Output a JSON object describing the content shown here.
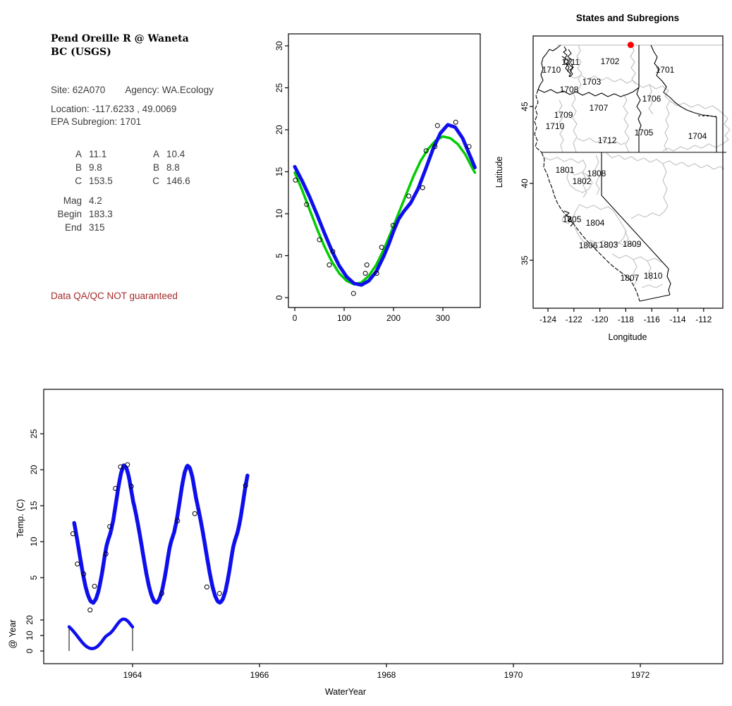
{
  "info_panel": {
    "title_line1": "Pend Oreille R @ Waneta",
    "title_line2": "BC (USGS)",
    "site_label": "Site: 62A070",
    "agency_label": "Agency: WA.Ecology",
    "location_label": "Location: -117.6233 , 49.0069",
    "subregion_label": "EPA Subregion: 1701",
    "params_left": [
      {
        "label": "A",
        "value": "11.1"
      },
      {
        "label": "B",
        "value": "9.8"
      },
      {
        "label": "C",
        "value": "153.5"
      },
      {
        "label": "Mag",
        "value": "4.2",
        "gap_before": true
      },
      {
        "label": "Begin",
        "value": "183.3"
      },
      {
        "label": "End",
        "value": "315"
      }
    ],
    "params_right": [
      {
        "label": "A",
        "value": "10.4"
      },
      {
        "label": "B",
        "value": "8.8"
      },
      {
        "label": "C",
        "value": "146.6"
      }
    ],
    "qa_warning": "Data QA/QC NOT guaranteed",
    "qa_color": "#A52A2A"
  },
  "colors": {
    "fit_blue": "#0F0FEE",
    "fit_green": "#00CD00",
    "site_dot_red": "#FF0000",
    "subregion_gray": "#C3C3C3"
  },
  "chart_data": [
    {
      "id": "seasonal_fit_plot",
      "type": "scatter",
      "xlabel": "",
      "ylabel": "",
      "xlim": [
        -13,
        376
      ],
      "ylim": [
        -1.2,
        31.4
      ],
      "x_ticks": [
        0,
        100,
        200,
        300
      ],
      "y_ticks": [
        0,
        5,
        10,
        15,
        20,
        25,
        30
      ],
      "scatter": {
        "x": [
          1.4,
          24,
          50,
          70,
          77,
          119,
          143,
          146,
          166,
          176,
          199,
          231,
          259,
          266,
          284,
          289,
          326,
          353
        ],
        "y": [
          14.0,
          11.1,
          6.9,
          3.9,
          5.5,
          0.5,
          2.9,
          3.9,
          2.9,
          6.0,
          8.6,
          12.1,
          13.1,
          17.5,
          18.0,
          20.5,
          20.9,
          18.0
        ]
      },
      "series": [
        {
          "name": "seasonal-smooth-fit",
          "color": "#0F0FEE",
          "width": 5,
          "x": [
            0,
            15,
            30,
            45,
            60,
            75,
            90,
            105,
            120,
            135,
            150,
            165,
            180,
            190,
            200,
            210,
            220,
            235,
            250,
            265,
            280,
            295,
            310,
            325,
            340,
            355,
            365
          ],
          "y": [
            15.6,
            13.9,
            12.0,
            9.9,
            7.7,
            5.6,
            3.8,
            2.5,
            1.7,
            1.5,
            2.0,
            3.1,
            4.9,
            6.3,
            7.9,
            9.3,
            10.2,
            11.3,
            13.0,
            15.3,
            17.7,
            19.6,
            20.6,
            20.3,
            19.0,
            16.9,
            15.5
          ]
        },
        {
          "name": "sine-fit",
          "color": "#00CD00",
          "width": 3.5,
          "x": [
            0,
            15,
            30,
            45,
            60,
            75,
            90,
            105,
            120,
            135,
            150,
            165,
            180,
            195,
            210,
            225,
            240,
            255,
            270,
            285,
            300,
            315,
            330,
            345,
            360,
            365
          ],
          "y": [
            14.9,
            12.8,
            10.5,
            8.2,
            6.1,
            4.3,
            2.9,
            2.0,
            1.6,
            1.8,
            2.6,
            3.9,
            5.7,
            7.8,
            10.0,
            12.2,
            14.4,
            16.3,
            17.7,
            18.7,
            19.2,
            19.0,
            18.3,
            17.1,
            15.4,
            14.9
          ]
        }
      ]
    },
    {
      "id": "subregion_map",
      "type": "map",
      "title": "States and Subregions",
      "xlabel": "Longitude",
      "ylabel": "Latitude",
      "x_ticks": [
        -124,
        -122,
        -120,
        -118,
        -116,
        -114,
        -112
      ],
      "y_ticks": [
        35,
        40,
        45
      ],
      "site_marker": {
        "lon": -117.6233,
        "lat": 49.0069,
        "color": "#FF0000"
      },
      "region_labels": [
        {
          "text": "1710",
          "lon": -123.73,
          "lat": 47.39
        },
        {
          "text": "1711",
          "lon": -122.25,
          "lat": 47.9
        },
        {
          "text": "1702",
          "lon": -119.22,
          "lat": 47.94
        },
        {
          "text": "1701",
          "lon": -114.98,
          "lat": 47.39
        },
        {
          "text": "1703",
          "lon": -120.63,
          "lat": 46.61
        },
        {
          "text": "1708",
          "lon": -122.37,
          "lat": 46.1
        },
        {
          "text": "1706",
          "lon": -116.01,
          "lat": 45.5
        },
        {
          "text": "1707",
          "lon": -120.09,
          "lat": 44.91
        },
        {
          "text": "1709",
          "lon": -122.8,
          "lat": 44.45
        },
        {
          "text": "1710",
          "lon": -123.46,
          "lat": 43.72
        },
        {
          "text": "1705",
          "lon": -116.61,
          "lat": 43.3
        },
        {
          "text": "1704",
          "lon": -112.48,
          "lat": 43.07
        },
        {
          "text": "1712",
          "lon": -119.43,
          "lat": 42.8
        },
        {
          "text": "1801",
          "lon": -122.7,
          "lat": 40.87
        },
        {
          "text": "1808",
          "lon": -120.25,
          "lat": 40.64
        },
        {
          "text": "1802",
          "lon": -121.39,
          "lat": 40.14
        },
        {
          "text": "1805",
          "lon": -122.15,
          "lat": 37.66
        },
        {
          "text": "1804",
          "lon": -120.36,
          "lat": 37.43
        },
        {
          "text": "1806",
          "lon": -120.9,
          "lat": 35.96
        },
        {
          "text": "1803",
          "lon": -119.33,
          "lat": 36.01
        },
        {
          "text": "1809",
          "lon": -117.53,
          "lat": 36.06
        },
        {
          "text": "1807",
          "lon": -117.7,
          "lat": 33.85
        },
        {
          "text": "1810",
          "lon": -115.9,
          "lat": 33.99
        }
      ]
    },
    {
      "id": "water_year_series",
      "type": "line",
      "xlabel": "WaterYear",
      "ylabel": "Temp. (C)",
      "inset_ylabel": "@ Year",
      "x_ticks": [
        1964,
        1966,
        1968,
        1970,
        1972
      ],
      "y_ticks": [
        5,
        10,
        15,
        20,
        25
      ],
      "inset_y_ticks": [
        0,
        10,
        20
      ],
      "curve": {
        "name": "seasonal-fit-over-time",
        "color": "#0F0FEE",
        "width": 5.5,
        "start": 1963.08,
        "end": 1965.81,
        "peak_year": 1963.86
      },
      "scatter": {
        "t": [
          1963.06,
          1963.13,
          1963.23,
          1963.33,
          1963.4,
          1963.58,
          1963.64,
          1963.73,
          1963.81,
          1963.92,
          1963.98,
          1964.46,
          1964.71,
          1964.98,
          1965.17,
          1965.37,
          1965.78
        ],
        "v": [
          11.1,
          6.9,
          5.5,
          0.5,
          3.8,
          8.3,
          12.1,
          17.4,
          20.4,
          20.7,
          17.7,
          2.8,
          12.9,
          13.9,
          3.7,
          2.8,
          17.8
        ]
      },
      "inset": {
        "start": 1963.0,
        "end": 1964.0,
        "boundary_line_t": [
          1963.0,
          1964.0
        ]
      }
    }
  ]
}
